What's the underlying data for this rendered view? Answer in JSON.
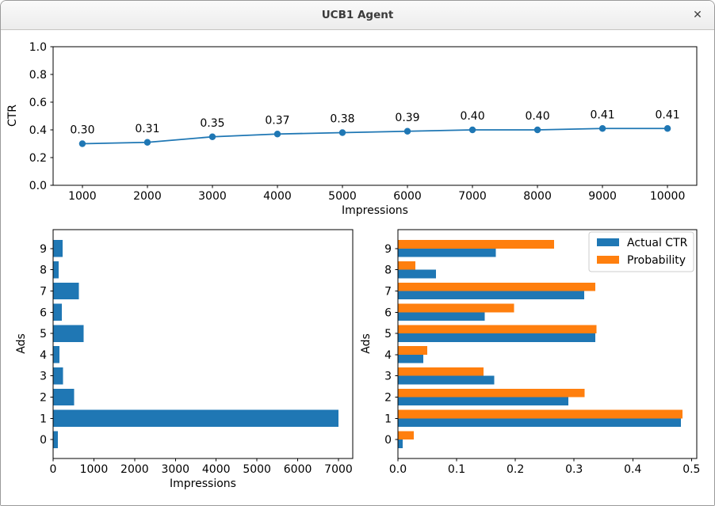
{
  "window": {
    "title": "UCB1 Agent",
    "close_icon": "✕"
  },
  "colors": {
    "blue": "#1f77b4",
    "orange": "#ff7f0e",
    "axis": "#000000"
  },
  "chart_data": [
    {
      "id": "ctr_line",
      "type": "line",
      "xlabel": "Impressions",
      "ylabel": "CTR",
      "x": [
        1000,
        2000,
        3000,
        4000,
        5000,
        6000,
        7000,
        8000,
        9000,
        10000
      ],
      "y": [
        0.3,
        0.31,
        0.35,
        0.37,
        0.38,
        0.39,
        0.4,
        0.4,
        0.41,
        0.41
      ],
      "point_labels": [
        "0.30",
        "0.31",
        "0.35",
        "0.37",
        "0.38",
        "0.39",
        "0.40",
        "0.40",
        "0.41",
        "0.41"
      ],
      "xticks": [
        1000,
        2000,
        3000,
        4000,
        5000,
        6000,
        7000,
        8000,
        9000,
        10000
      ],
      "xtick_labels": [
        "1000",
        "2000",
        "3000",
        "4000",
        "5000",
        "6000",
        "7000",
        "8000",
        "9000",
        "10000"
      ],
      "yticks": [
        0.0,
        0.2,
        0.4,
        0.6,
        0.8,
        1.0
      ],
      "ytick_labels": [
        "0.0",
        "0.2",
        "0.4",
        "0.6",
        "0.8",
        "1.0"
      ],
      "xlim": [
        550,
        10450
      ],
      "ylim": [
        0,
        1
      ],
      "color": "#1f77b4",
      "grid": false
    },
    {
      "id": "impressions_bar",
      "type": "barh",
      "xlabel": "Impressions",
      "ylabel": "Ads",
      "categories": [
        0,
        1,
        2,
        3,
        4,
        5,
        6,
        7,
        8,
        9
      ],
      "category_labels": [
        "0",
        "1",
        "2",
        "3",
        "4",
        "5",
        "6",
        "7",
        "8",
        "9"
      ],
      "values": [
        120,
        7000,
        520,
        245,
        155,
        745,
        215,
        630,
        135,
        230
      ],
      "xticks": [
        0,
        1000,
        2000,
        3000,
        4000,
        5000,
        6000,
        7000
      ],
      "xtick_labels": [
        "0",
        "1000",
        "2000",
        "3000",
        "4000",
        "5000",
        "6000",
        "7000"
      ],
      "xlim": [
        0,
        7350
      ],
      "ylim": [
        -0.89,
        9.89
      ],
      "bar_height": 0.8,
      "color": "#1f77b4",
      "grid": false
    },
    {
      "id": "ctr_prob_bar",
      "type": "barh-grouped",
      "xlabel": "",
      "ylabel": "Ads",
      "categories": [
        0,
        1,
        2,
        3,
        4,
        5,
        6,
        7,
        8,
        9
      ],
      "category_labels": [
        "0",
        "1",
        "2",
        "3",
        "4",
        "5",
        "6",
        "7",
        "8",
        "9"
      ],
      "series": [
        {
          "name": "Actual CTR",
          "color": "#1f77b4",
          "offset": -0.2,
          "values": [
            0.008,
            0.482,
            0.29,
            0.164,
            0.043,
            0.336,
            0.148,
            0.317,
            0.065,
            0.167
          ]
        },
        {
          "name": "Probability",
          "color": "#ff7f0e",
          "offset": 0.2,
          "values": [
            0.027,
            0.485,
            0.318,
            0.146,
            0.05,
            0.338,
            0.198,
            0.336,
            0.03,
            0.266
          ]
        }
      ],
      "xticks": [
        0.0,
        0.1,
        0.2,
        0.3,
        0.4,
        0.5
      ],
      "xtick_labels": [
        "0.0",
        "0.1",
        "0.2",
        "0.3",
        "0.4",
        "0.5"
      ],
      "xlim": [
        0,
        0.509
      ],
      "ylim": [
        -0.89,
        9.89
      ],
      "bar_height": 0.4,
      "legend": {
        "position": "upper-right",
        "entries": [
          "Actual CTR",
          "Probability"
        ]
      },
      "grid": false
    }
  ]
}
